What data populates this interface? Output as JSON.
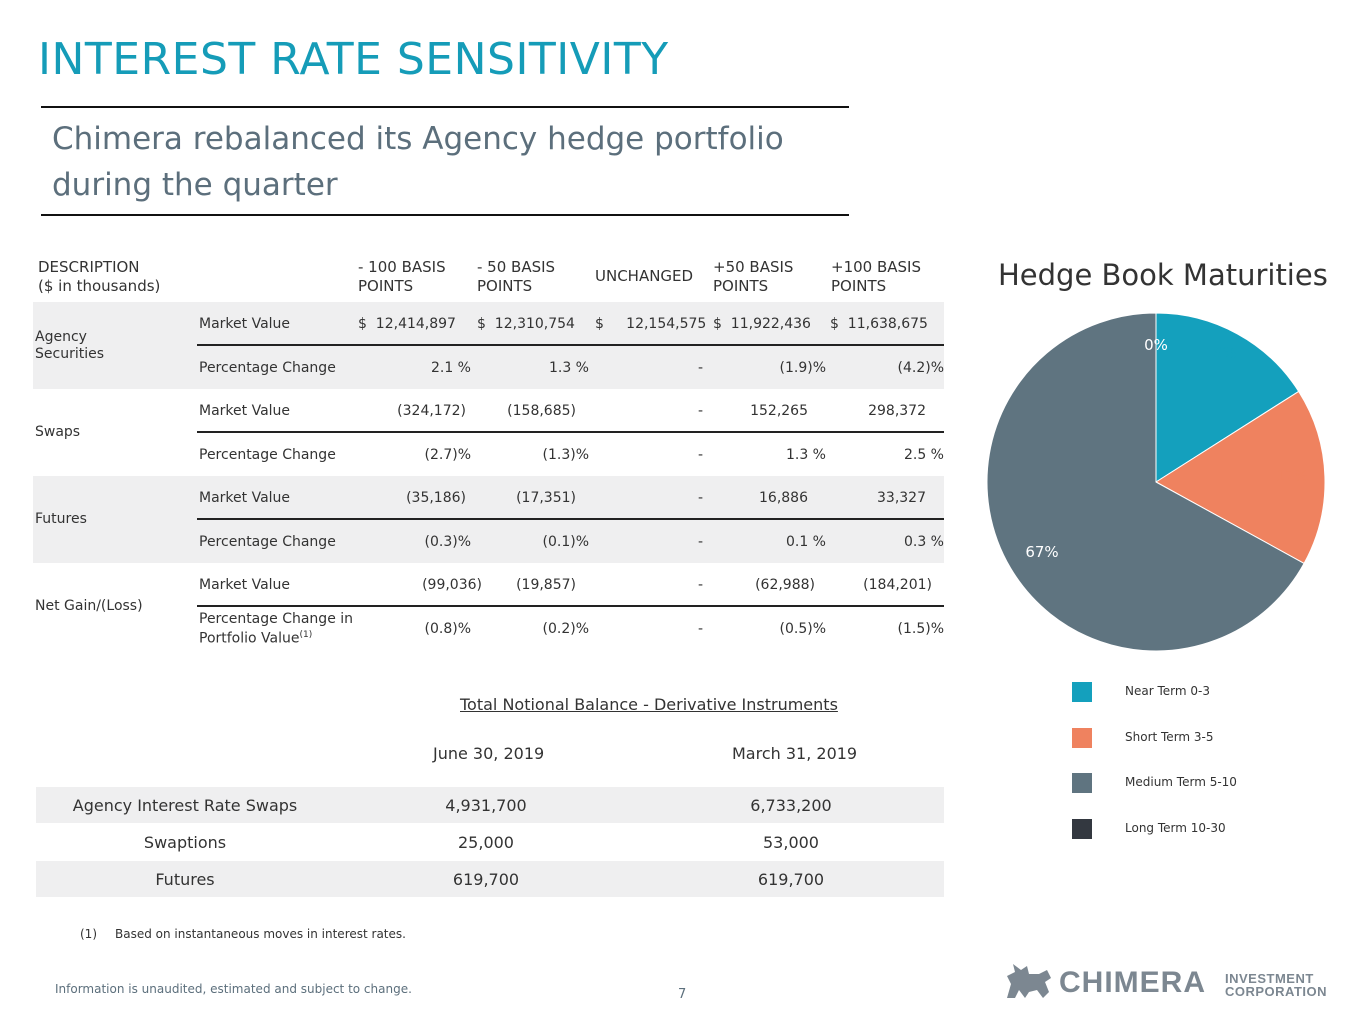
{
  "page": {
    "title": "INTEREST RATE SENSITIVITY",
    "subtitle": "Chimera rebalanced its Agency hedge portfolio during the quarter",
    "page_number": "7",
    "disclaimer": "Information is unaudited, estimated and subject to change."
  },
  "sensitivity": {
    "header": {
      "desc_line1": "DESCRIPTION",
      "desc_line2": "($ in thousands)",
      "m100_line1": "- 100 BASIS",
      "m100_line2": "POINTS",
      "m50_line1": "- 50 BASIS",
      "m50_line2": "POINTS",
      "unchanged": "UNCHANGED",
      "p50_line1": "+50 BASIS",
      "p50_line2": "POINTS",
      "p100_line1": "+100 BASIS",
      "p100_line2": "POINTS"
    },
    "groups": [
      {
        "name": "Agency Securities",
        "rows": [
          {
            "label": "Market Value",
            "m100": "$  12,414,897",
            "m50": "$  12,310,754",
            "unch": "$     12,154,575",
            "p50": "$  11,922,436",
            "p100": "$  11,638,675"
          },
          {
            "label": "Percentage Change",
            "m100": "2.1 %",
            "m50": "1.3 %",
            "unch": "-",
            "p50": "(1.9)%",
            "p100": "(4.2)%"
          }
        ]
      },
      {
        "name": "Swaps",
        "rows": [
          {
            "label": "Market Value",
            "m100": "(324,172)",
            "m50": "(158,685)",
            "unch": "-",
            "p50": "152,265",
            "p100": "298,372"
          },
          {
            "label": "Percentage Change",
            "m100": "(2.7)%",
            "m50": "(1.3)%",
            "unch": "-",
            "p50": "1.3 %",
            "p100": "2.5 %"
          }
        ]
      },
      {
        "name": "Futures",
        "rows": [
          {
            "label": "Market Value",
            "m100": "(35,186)",
            "m50": "(17,351)",
            "unch": "-",
            "p50": "16,886",
            "p100": "33,327"
          },
          {
            "label": "Percentage Change",
            "m100": "(0.3)%",
            "m50": "(0.1)%",
            "unch": "-",
            "p50": "0.1 %",
            "p100": "0.3 %"
          }
        ]
      },
      {
        "name": "Net Gain/(Loss)",
        "rows": [
          {
            "label": "Market Value",
            "m100": "(99,036)",
            "m50": "(19,857)",
            "unch": "-",
            "p50": "(62,988)",
            "p100": "(184,201)"
          },
          {
            "label_line1": "Percentage Change in",
            "label_line2": "Portfolio Value",
            "label_sup": "(1)",
            "m100": "(0.8)%",
            "m50": "(0.2)%",
            "unch": "-",
            "p50": "(0.5)%",
            "p100": "(1.5)%"
          }
        ]
      }
    ]
  },
  "notional": {
    "title": "Total Notional Balance - Derivative Instruments",
    "col1": "June 30, 2019",
    "col2": "March 31, 2019",
    "rows": [
      {
        "label": "Agency Interest Rate Swaps",
        "c1": "4,931,700",
        "c2": "6,733,200"
      },
      {
        "label": "Swaptions",
        "c1": "25,000",
        "c2": "53,000"
      },
      {
        "label": "Futures",
        "c1": "619,700",
        "c2": "619,700"
      }
    ]
  },
  "footnote": {
    "number": "(1)",
    "text": "Based on instantaneous moves in interest rates."
  },
  "chart_data": {
    "type": "pie",
    "title": "Hedge Book Maturities",
    "series": [
      {
        "name": "Near Term 0-3",
        "value": 16,
        "label": "16%",
        "color": "#14a0bd"
      },
      {
        "name": "Short Term 3-5",
        "value": 17,
        "label": "17%",
        "color": "#ef825f"
      },
      {
        "name": "Medium Term 5-10",
        "value": 67,
        "label": "67%",
        "color": "#5f7480"
      },
      {
        "name": "Long Term 10-30",
        "value": 0,
        "label": "0%",
        "color": "#333840"
      }
    ],
    "legend_position": "bottom-right"
  },
  "logo": {
    "name": "CHIMERA",
    "line1": "INVESTMENT",
    "line2": "CORPORATION"
  }
}
